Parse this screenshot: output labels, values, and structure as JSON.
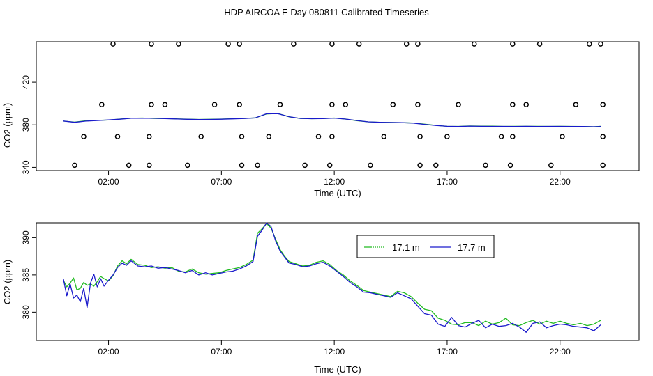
{
  "title": "HDP AIRCOA E  Day 080811  Calibrated Timeseries",
  "colors": {
    "series_a": "#22bb22",
    "series_b": "#1a1acc",
    "axis": "#000000"
  },
  "chart_data": [
    {
      "type": "line",
      "title": "",
      "xlabel": "Time (UTC)",
      "ylabel": "CO2 (ppm)",
      "xlim": [
        -1.2,
        25.5
      ],
      "ylim": [
        337,
        458
      ],
      "xticks": [
        2,
        7,
        12,
        17,
        22
      ],
      "xtick_labels": [
        "02:00",
        "07:00",
        "12:00",
        "17:00",
        "22:00"
      ],
      "yticks": [
        340,
        380,
        420
      ],
      "ytick_labels": [
        "340",
        "380",
        "420"
      ],
      "series": [
        {
          "x": [
            0,
            0.5,
            1,
            1.5,
            2,
            2.5,
            3,
            3.5,
            4,
            4.5,
            5,
            5.5,
            6,
            6.5,
            7,
            7.5,
            8,
            8.5,
            9,
            9.5,
            10,
            10.5,
            11,
            11.5,
            12,
            12.5,
            13,
            13.5,
            14,
            14.5,
            15,
            15.5,
            16,
            16.5,
            17,
            17.5,
            18,
            18.5,
            19,
            19.5,
            20,
            20.5,
            21,
            21.5,
            22,
            22.5,
            23,
            23.5,
            23.8
          ],
          "y": [
            383.5,
            382.5,
            383.8,
            384.2,
            384.5,
            385.4,
            386.2,
            386.4,
            386.0,
            385.9,
            385.6,
            385.3,
            385.1,
            385.2,
            385.4,
            385.7,
            386.0,
            386.5,
            390.2,
            390.6,
            387.5,
            386.0,
            385.7,
            385.9,
            386.4,
            385.4,
            383.9,
            382.8,
            382.4,
            382.2,
            382.0,
            381.7,
            380.6,
            379.5,
            378.6,
            378.5,
            378.9,
            378.7,
            378.7,
            378.5,
            378.6,
            378.6,
            378.6,
            378.5,
            378.6,
            378.5,
            378.4,
            378.2,
            378.6
          ]
        },
        {
          "x": [
            0,
            0.5,
            1,
            1.5,
            2,
            2.5,
            3,
            3.5,
            4,
            4.5,
            5,
            5.5,
            6,
            6.5,
            7,
            7.5,
            8,
            8.5,
            9,
            9.5,
            10,
            10.5,
            11,
            11.5,
            12,
            12.5,
            13,
            13.5,
            14,
            14.5,
            15,
            15.5,
            16,
            16.5,
            17,
            17.5,
            18,
            18.5,
            19,
            19.5,
            20,
            20.5,
            21,
            21.5,
            22,
            22.5,
            23,
            23.5,
            23.8
          ],
          "y": [
            383.6,
            382.3,
            383.5,
            384.0,
            384.6,
            385.3,
            386.1,
            386.2,
            386.1,
            385.8,
            385.5,
            385.2,
            385.0,
            385.1,
            385.3,
            385.6,
            385.9,
            386.5,
            390.4,
            390.5,
            387.6,
            386.0,
            385.7,
            385.8,
            386.3,
            385.4,
            384.0,
            382.8,
            382.4,
            382.2,
            382.0,
            381.6,
            380.4,
            379.4,
            378.6,
            378.4,
            378.8,
            378.6,
            378.5,
            378.5,
            378.4,
            378.6,
            378.4,
            378.5,
            378.5,
            378.4,
            378.4,
            378.2,
            378.4
          ]
        }
      ],
      "markers": {
        "type": "scatter",
        "x": [
          2.2,
          3.9,
          5.1,
          7.3,
          7.8,
          10.2,
          11.9,
          13.1,
          15.2,
          15.7,
          18.2,
          19.9,
          21.1,
          23.3,
          23.8,
          1.7,
          3.9,
          4.5,
          6.7,
          7.8,
          9.6,
          11.9,
          12.5,
          14.6,
          15.7,
          17.5,
          19.9,
          20.5,
          22.7,
          23.9,
          0.9,
          2.4,
          3.8,
          6.1,
          7.9,
          9.1,
          11.3,
          11.9,
          14.2,
          15.8,
          17.0,
          19.4,
          19.9,
          22.1,
          23.9,
          0.5,
          2.9,
          3.8,
          5.5,
          7.9,
          8.6,
          10.7,
          11.8,
          13.6,
          15.8,
          16.5,
          18.7,
          19.8,
          21.6,
          23.9
        ],
        "y": [
          456,
          456,
          456,
          456,
          456,
          456,
          456,
          456,
          456,
          456,
          456,
          456,
          456,
          456,
          456,
          399,
          399,
          399,
          399,
          399,
          399,
          399,
          399,
          399,
          399,
          399,
          399,
          399,
          399,
          399,
          369,
          369,
          369,
          369,
          369,
          369,
          369,
          369,
          369,
          369,
          369,
          369,
          369,
          369,
          369,
          342,
          342,
          342,
          342,
          342,
          342,
          342,
          342,
          342,
          342,
          342,
          342,
          342,
          342,
          342
        ]
      }
    },
    {
      "type": "line",
      "title": "",
      "xlabel": "Time (UTC)",
      "ylabel": "CO2 (ppm)",
      "xlim": [
        -1.2,
        25.5
      ],
      "ylim": [
        376.2,
        392.0
      ],
      "xticks": [
        2,
        7,
        12,
        17,
        22
      ],
      "xtick_labels": [
        "02:00",
        "07:00",
        "12:00",
        "17:00",
        "22:00"
      ],
      "yticks": [
        380,
        385,
        390
      ],
      "ytick_labels": [
        "380",
        "385",
        "390"
      ],
      "legend_position": "top-center-right",
      "series": [
        {
          "name": "17.1 m",
          "x": [
            0,
            0.15,
            0.3,
            0.45,
            0.6,
            0.75,
            0.9,
            1.05,
            1.2,
            1.35,
            1.5,
            1.65,
            1.8,
            2.0,
            2.2,
            2.4,
            2.6,
            2.8,
            3.0,
            3.3,
            3.6,
            3.9,
            4.2,
            4.5,
            4.8,
            5.1,
            5.4,
            5.7,
            6.0,
            6.3,
            6.6,
            6.9,
            7.2,
            7.5,
            7.8,
            8.1,
            8.4,
            8.6,
            8.8,
            9.0,
            9.2,
            9.4,
            9.6,
            9.8,
            10.0,
            10.3,
            10.6,
            10.9,
            11.2,
            11.5,
            11.8,
            12.1,
            12.4,
            12.7,
            13.0,
            13.3,
            13.6,
            13.9,
            14.2,
            14.5,
            14.8,
            15.1,
            15.4,
            15.7,
            16.0,
            16.3,
            16.6,
            16.9,
            17.2,
            17.5,
            17.8,
            18.1,
            18.4,
            18.7,
            19.0,
            19.3,
            19.6,
            19.9,
            20.2,
            20.5,
            20.8,
            21.1,
            21.4,
            21.7,
            22.0,
            22.3,
            22.6,
            22.9,
            23.2,
            23.5,
            23.8
          ],
          "y": [
            384.3,
            383.4,
            383.9,
            384.6,
            383.0,
            383.2,
            384.0,
            383.6,
            383.8,
            383.5,
            384.1,
            384.8,
            384.5,
            384.2,
            384.9,
            386.2,
            386.9,
            386.5,
            387.1,
            386.4,
            386.3,
            386.0,
            386.1,
            385.9,
            386.0,
            385.5,
            385.4,
            385.8,
            385.3,
            385.1,
            385.2,
            385.3,
            385.6,
            385.8,
            386.0,
            386.4,
            387.0,
            390.6,
            391.2,
            391.9,
            391.3,
            389.8,
            388.4,
            387.5,
            386.8,
            386.5,
            386.2,
            386.3,
            386.7,
            386.9,
            386.4,
            385.6,
            385.0,
            384.2,
            383.6,
            382.9,
            382.7,
            382.5,
            382.3,
            382.1,
            382.8,
            382.6,
            382.1,
            381.2,
            380.4,
            380.2,
            379.2,
            378.9,
            378.4,
            378.3,
            378.6,
            378.6,
            378.2,
            378.8,
            378.4,
            378.6,
            379.2,
            378.3,
            378.2,
            378.6,
            378.9,
            378.4,
            378.8,
            378.5,
            378.8,
            378.5,
            378.3,
            378.5,
            378.2,
            378.4,
            378.9
          ]
        },
        {
          "name": "17.7 m",
          "x": [
            0,
            0.15,
            0.3,
            0.45,
            0.6,
            0.75,
            0.9,
            1.05,
            1.2,
            1.35,
            1.5,
            1.65,
            1.8,
            2.0,
            2.2,
            2.4,
            2.6,
            2.8,
            3.0,
            3.3,
            3.6,
            3.9,
            4.2,
            4.5,
            4.8,
            5.1,
            5.4,
            5.7,
            6.0,
            6.3,
            6.6,
            6.9,
            7.2,
            7.5,
            7.8,
            8.1,
            8.4,
            8.6,
            8.8,
            9.0,
            9.2,
            9.4,
            9.6,
            9.8,
            10.0,
            10.3,
            10.6,
            10.9,
            11.2,
            11.5,
            11.8,
            12.1,
            12.4,
            12.7,
            13.0,
            13.3,
            13.6,
            13.9,
            14.2,
            14.5,
            14.8,
            15.1,
            15.4,
            15.7,
            16.0,
            16.3,
            16.6,
            16.9,
            17.2,
            17.5,
            17.8,
            18.1,
            18.4,
            18.7,
            19.0,
            19.3,
            19.6,
            19.9,
            20.2,
            20.5,
            20.8,
            21.1,
            21.4,
            21.7,
            22.0,
            22.3,
            22.6,
            22.9,
            23.2,
            23.5,
            23.8
          ],
          "y": [
            384.5,
            382.2,
            383.8,
            381.9,
            382.3,
            381.4,
            383.2,
            380.6,
            383.9,
            385.1,
            383.4,
            384.5,
            383.5,
            384.3,
            385.0,
            386.0,
            386.6,
            386.3,
            386.9,
            386.2,
            386.1,
            386.2,
            385.9,
            386.0,
            385.8,
            385.6,
            385.3,
            385.6,
            385.0,
            385.3,
            385.0,
            385.2,
            385.4,
            385.5,
            385.8,
            386.2,
            386.8,
            390.2,
            391.0,
            392.0,
            391.5,
            389.6,
            388.2,
            387.4,
            386.6,
            386.4,
            386.1,
            386.2,
            386.5,
            386.7,
            386.2,
            385.5,
            384.8,
            384.0,
            383.4,
            382.7,
            382.6,
            382.4,
            382.2,
            382.0,
            382.6,
            382.2,
            381.8,
            380.8,
            379.8,
            379.6,
            378.4,
            378.1,
            379.3,
            378.2,
            378.0,
            378.5,
            378.9,
            377.9,
            378.4,
            378.1,
            378.2,
            378.5,
            378.0,
            377.3,
            378.5,
            378.7,
            377.9,
            378.2,
            378.4,
            378.3,
            378.1,
            378.0,
            377.9,
            377.5,
            378.3
          ]
        }
      ]
    }
  ]
}
